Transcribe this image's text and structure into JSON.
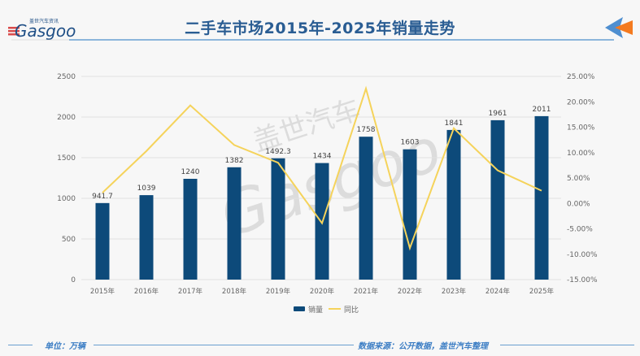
{
  "header": {
    "title": "二手车市场2015年-2025年销量走势",
    "logo_text": "Gasgoo",
    "logo_subtext": "盖世汽车资讯"
  },
  "footer": {
    "unit": "单位：万辆",
    "source": "数据来源：公开数据，盖世汽车整理"
  },
  "watermark": {
    "main": "Gasgoo",
    "cn": "盖世汽车"
  },
  "colors": {
    "bar": "#0d4a7a",
    "line": "#f5d35b",
    "title": "#2a5d93",
    "accent_blue": "#4f8fd0",
    "accent_orange": "#f47a1f"
  },
  "chart_data": {
    "type": "bar+line",
    "title": "二手车市场2015年-2025年销量走势",
    "categories": [
      "2015年",
      "2016年",
      "2017年",
      "2018年",
      "2019年",
      "2020年",
      "2021年",
      "2022年",
      "2023年",
      "2024年",
      "2025年"
    ],
    "series": [
      {
        "name": "销量",
        "type": "bar",
        "axis": "left",
        "values": [
          941.7,
          1039,
          1240,
          1382,
          1492.3,
          1434,
          1758,
          1603,
          1841,
          1961,
          2011
        ],
        "labels": [
          "941.7",
          "1039",
          "1240",
          "1382",
          "1492.3",
          "1434",
          "1758",
          "1603",
          "1841",
          "1961",
          "2011"
        ]
      },
      {
        "name": "同比",
        "type": "line",
        "axis": "right",
        "values": [
          2.1,
          10.3,
          19.3,
          11.5,
          8.0,
          -3.9,
          22.6,
          -8.8,
          14.8,
          6.5,
          2.5
        ]
      }
    ],
    "left_axis": {
      "ticks": [
        "0",
        "500",
        "1000",
        "1500",
        "2000",
        "2500"
      ],
      "ylim": [
        0,
        2500
      ]
    },
    "right_axis": {
      "ticks": [
        "-15.00%",
        "-10.00%",
        "-5.00%",
        "0.00%",
        "5.00%",
        "10.00%",
        "15.00%",
        "20.00%",
        "25.00%"
      ],
      "ylim": [
        -15,
        25
      ]
    },
    "legend": [
      "销量",
      "同比"
    ],
    "legend_position": "bottom",
    "grid": true,
    "xlabel": "",
    "ylabel": ""
  }
}
